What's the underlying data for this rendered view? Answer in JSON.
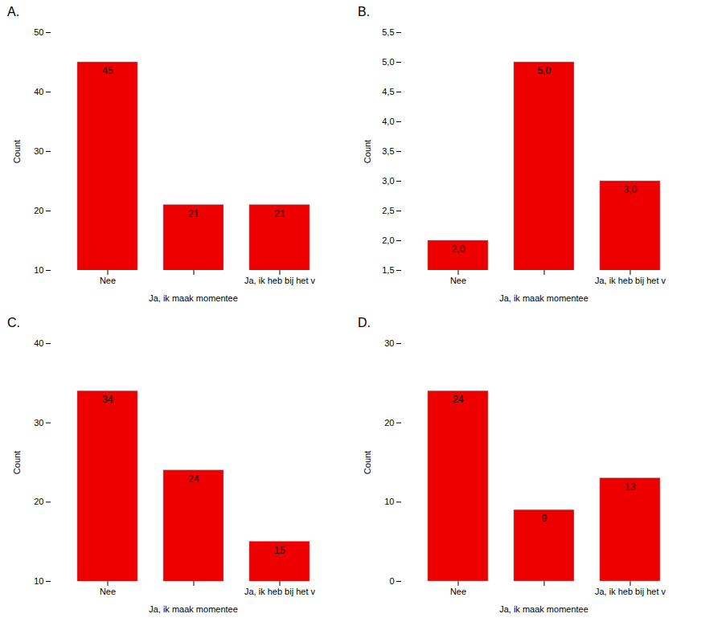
{
  "chart_data": [
    {
      "type": "bar",
      "title": "A.",
      "categories": [
        "Nee",
        null,
        "Ja, ik heb bij het v"
      ],
      "values": [
        45,
        21,
        21
      ],
      "data_labels": true,
      "color": "#EE0000",
      "xlabel": "Ja, ik maak momentee",
      "ylabel": "Count",
      "ylim": [
        10,
        50
      ],
      "yticks": [
        10,
        20,
        30,
        40,
        50
      ],
      "grid": false
    },
    {
      "type": "bar",
      "title": "B.",
      "categories": [
        "Nee",
        null,
        "Ja, ik heb bij het v"
      ],
      "values": [
        2.0,
        5.0,
        3.0
      ],
      "value_labels": [
        "2,0",
        "5,0",
        "3,0"
      ],
      "data_labels": true,
      "color": "#EE0000",
      "xlabel": "Ja, ik maak momentee",
      "ylabel": "Count",
      "ylim": [
        1.5,
        5.5
      ],
      "yticks": [
        {
          "value": 1.5,
          "label": "1,5"
        },
        {
          "value": 2.0,
          "label": "2,0"
        },
        {
          "value": 2.5,
          "label": "2,5"
        },
        {
          "value": 3.0,
          "label": "3,0"
        },
        {
          "value": 3.5,
          "label": "3,5"
        },
        {
          "value": 4.0,
          "label": "4,0"
        },
        {
          "value": 4.5,
          "label": "4,5"
        },
        {
          "value": 5.0,
          "label": "5,0"
        },
        {
          "value": 5.5,
          "label": "5,5"
        }
      ],
      "grid": false
    },
    {
      "type": "bar",
      "title": "C.",
      "categories": [
        "Nee",
        null,
        "Ja, ik heb bij het v"
      ],
      "values": [
        34,
        24,
        15
      ],
      "data_labels": true,
      "color": "#EE0000",
      "xlabel": "Ja, ik maak momentee",
      "ylabel": "Count",
      "ylim": [
        10,
        40
      ],
      "yticks": [
        10,
        20,
        30,
        40
      ],
      "grid": false
    },
    {
      "type": "bar",
      "title": "D.",
      "categories": [
        "Nee",
        null,
        "Ja, ik heb bij het v"
      ],
      "values": [
        24,
        9,
        13
      ],
      "data_labels": true,
      "color": "#EE0000",
      "xlabel": "Ja, ik maak momentee",
      "ylabel": "Count",
      "ylim": [
        0,
        30
      ],
      "yticks": [
        0,
        10,
        20,
        30
      ],
      "grid": false
    }
  ]
}
